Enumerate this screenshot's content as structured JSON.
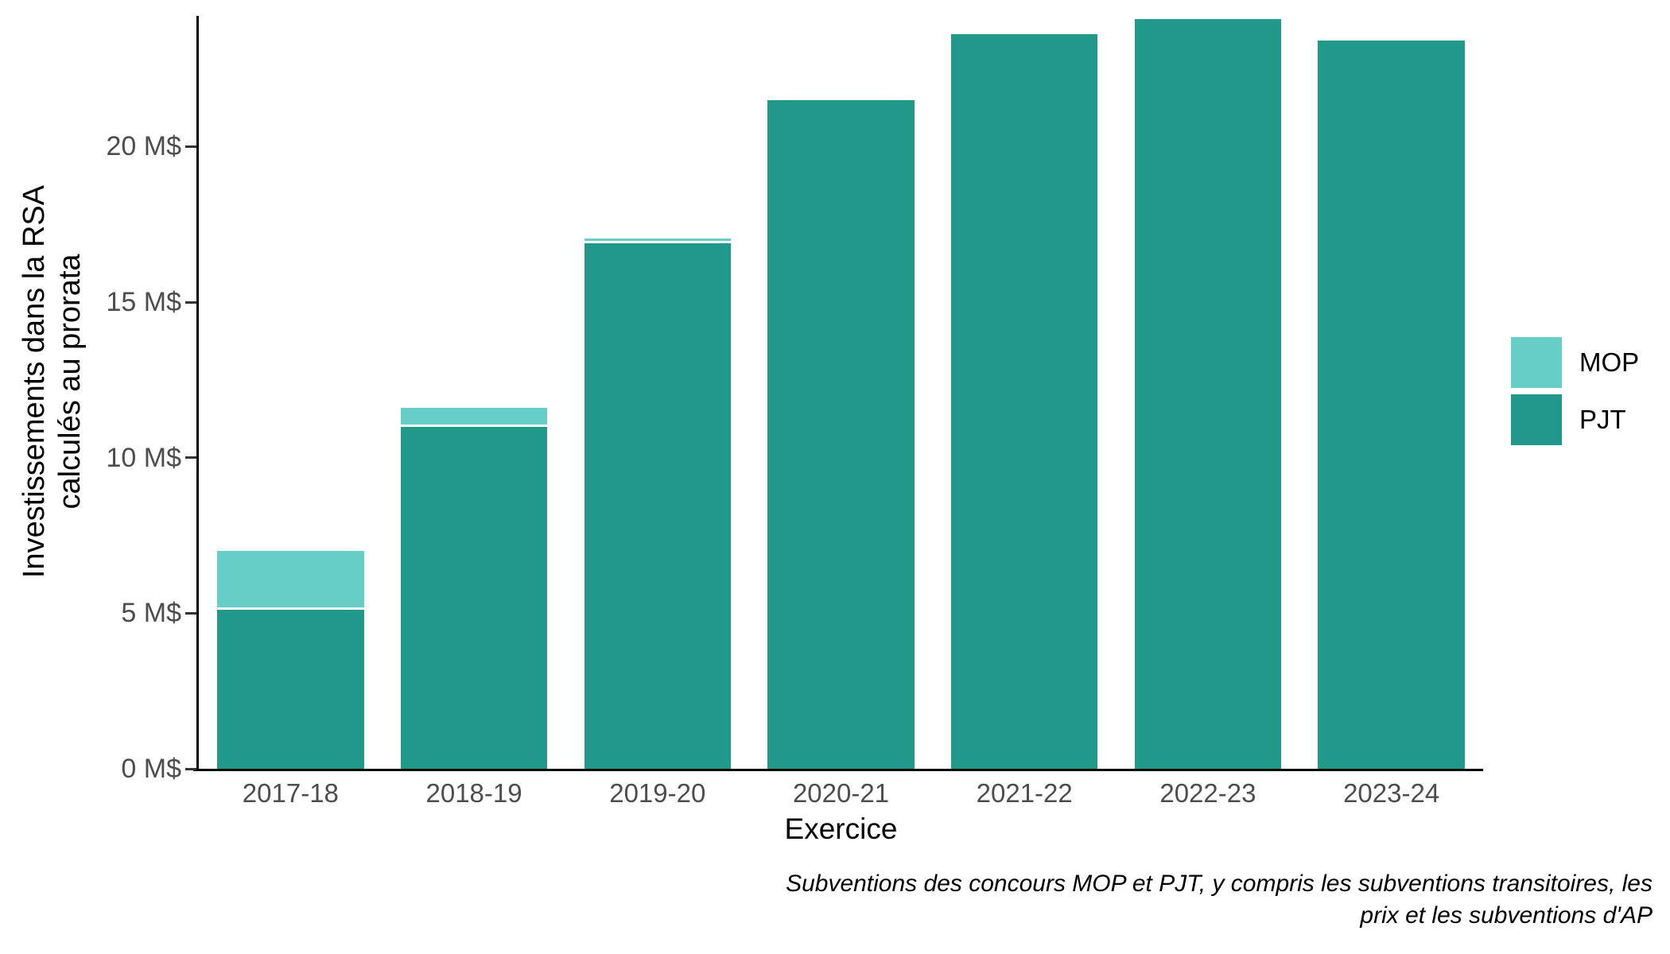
{
  "figure": {
    "background": "#ffffff",
    "axis_line_color": "#000000",
    "tick_color": "#333333",
    "tick_text_color": "#4d4d4d"
  },
  "chart_data": {
    "type": "bar",
    "stacked": true,
    "title": "",
    "xlabel": "Exercice",
    "ylabel_lines": [
      "Investissements dans la RSA",
      "calculés au prorata"
    ],
    "categories": [
      "2017-18",
      "2018-19",
      "2019-20",
      "2020-21",
      "2021-22",
      "2022-23",
      "2023-24"
    ],
    "series": [
      {
        "name": "MOP",
        "color": "#66cdc7",
        "values": [
          1.9,
          0.6,
          0.15,
          0,
          0,
          0,
          0
        ]
      },
      {
        "name": "PJT",
        "color": "#21998a",
        "values": [
          5.1,
          11.0,
          16.9,
          21.5,
          23.6,
          24.1,
          23.4
        ]
      }
    ],
    "totals": [
      7.0,
      11.6,
      17.05,
      21.5,
      23.6,
      24.1,
      23.4
    ],
    "unit": "M$",
    "y_ticks": [
      {
        "value": 0,
        "label": "0 M$"
      },
      {
        "value": 5,
        "label": "5 M$"
      },
      {
        "value": 10,
        "label": "10 M$"
      },
      {
        "value": 15,
        "label": "15 M$"
      },
      {
        "value": 20,
        "label": "20 M$"
      }
    ],
    "ylim": [
      0,
      24.2
    ],
    "grid": false,
    "legend_position": "right",
    "segment_separator_color": "#ffffff",
    "caption_lines": [
      "Subventions des concours MOP et PJT, y compris les subventions transitoires, les",
      "prix et les subventions d'AP"
    ]
  }
}
